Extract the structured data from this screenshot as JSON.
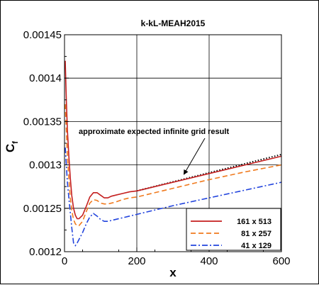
{
  "chart_data": {
    "type": "line",
    "title": "k-kL-MEAH2015",
    "xlabel": "x",
    "ylabel": "C",
    "ylabel_sub": "f",
    "xlim": [
      0,
      600
    ],
    "ylim": [
      0.0012,
      0.00145
    ],
    "xticks": [
      0,
      200,
      400,
      600
    ],
    "xtick_labels": [
      "0",
      "200",
      "400",
      "600"
    ],
    "yticks": [
      0.0012,
      0.00125,
      0.0013,
      0.00135,
      0.0014,
      0.00145
    ],
    "ytick_labels": [
      "0.0012",
      "0.00125",
      "0.0013",
      "0.00135",
      "0.0014",
      "0.00145"
    ],
    "grid": true,
    "legend_position": "bottom-right",
    "annotation": {
      "text": "approximate expected infinite grid result",
      "target": [
        330,
        0.001289
      ]
    },
    "reference": {
      "name": "approximate expected infinite grid result",
      "style": "dotted",
      "color": "#000000",
      "x": [
        200,
        600
      ],
      "y": [
        0.00127,
        0.001312
      ]
    },
    "series": [
      {
        "name": "161 x 513",
        "color": "#c41e1e",
        "dash": "",
        "x": [
          2,
          5,
          8,
          12,
          16,
          20,
          25,
          30,
          35,
          40,
          50,
          60,
          70,
          80,
          90,
          100,
          110,
          120,
          130,
          140,
          160,
          180,
          200,
          300,
          400,
          500,
          600
        ],
        "y": [
          0.00142,
          0.001375,
          0.00134,
          0.00131,
          0.001285,
          0.001265,
          0.00125,
          0.001242,
          0.001238,
          0.001238,
          0.001242,
          0.001252,
          0.001263,
          0.001268,
          0.001268,
          0.001265,
          0.001262,
          0.001262,
          0.001264,
          0.001265,
          0.001267,
          0.001269,
          0.00127,
          0.00128,
          0.00129,
          0.0013,
          0.00131
        ]
      },
      {
        "name": "81 x 257",
        "color": "#f07a1e",
        "dash": "7,4",
        "x": [
          2,
          5,
          8,
          12,
          16,
          20,
          25,
          30,
          35,
          40,
          50,
          60,
          70,
          80,
          90,
          100,
          110,
          120,
          130,
          140,
          160,
          180,
          200,
          300,
          400,
          500,
          600
        ],
        "y": [
          0.00137,
          0.00134,
          0.00131,
          0.001285,
          0.001262,
          0.001248,
          0.001237,
          0.001232,
          0.00123,
          0.00123,
          0.001235,
          0.001246,
          0.001256,
          0.00126,
          0.001259,
          0.001256,
          0.001255,
          0.001255,
          0.001256,
          0.001257,
          0.00126,
          0.001262,
          0.001263,
          0.001273,
          0.001283,
          0.001292,
          0.0013
        ]
      },
      {
        "name": "41 x 129",
        "color": "#2244dd",
        "dash": "8,3,2,3",
        "x": [
          2,
          5,
          8,
          12,
          16,
          20,
          25,
          30,
          35,
          40,
          50,
          60,
          70,
          80,
          90,
          100,
          110,
          120,
          130,
          140,
          160,
          180,
          200,
          300,
          400,
          500,
          600
        ],
        "y": [
          0.00132,
          0.0013,
          0.00128,
          0.001262,
          0.001245,
          0.001228,
          0.00121,
          0.001207,
          0.00121,
          0.001214,
          0.001222,
          0.001232,
          0.00124,
          0.001244,
          0.001241,
          0.001237,
          0.001235,
          0.001235,
          0.001236,
          0.001237,
          0.001239,
          0.001241,
          0.001243,
          0.001253,
          0.001262,
          0.001271,
          0.00128
        ]
      }
    ]
  }
}
